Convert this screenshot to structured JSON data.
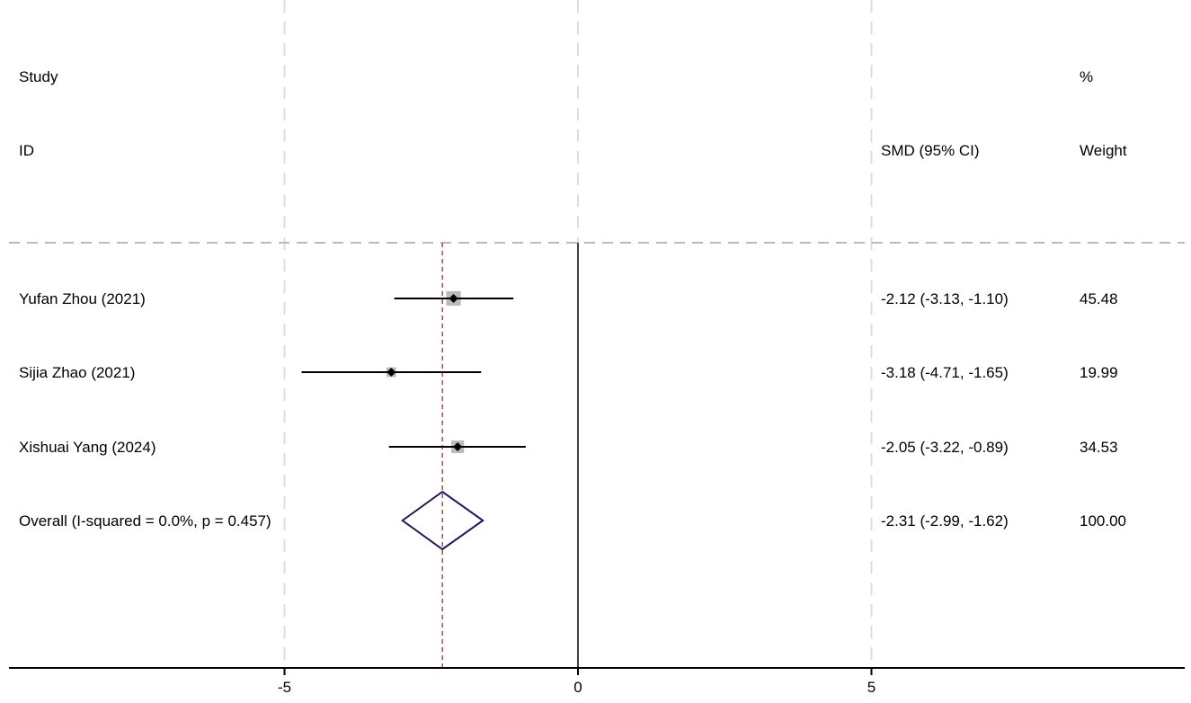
{
  "chart_data": {
    "type": "forest",
    "headers": {
      "study_line1": "Study",
      "study_line2": "ID",
      "effect": "SMD (95% CI)",
      "weight_line1": "%",
      "weight_line2": "Weight"
    },
    "studies": [
      {
        "label": "Yufan Zhou  (2021)",
        "es": -2.12,
        "lo": -3.13,
        "hi": -1.1,
        "weight": 45.48,
        "ci_text": "-2.12 (-3.13, -1.10)",
        "weight_text": "45.48"
      },
      {
        "label": "Sijia Zhao (2021)",
        "es": -3.18,
        "lo": -4.71,
        "hi": -1.65,
        "weight": 19.99,
        "ci_text": "-3.18 (-4.71, -1.65)",
        "weight_text": "19.99"
      },
      {
        "label": "Xishuai Yang (2024)",
        "es": -2.05,
        "lo": -3.22,
        "hi": -0.89,
        "weight": 34.53,
        "ci_text": "-2.05 (-3.22, -0.89)",
        "weight_text": "34.53"
      }
    ],
    "overall": {
      "label": "Overall  (I-squared = 0.0%, p = 0.457)",
      "es": -2.31,
      "lo": -2.99,
      "hi": -1.62,
      "ci_text": "-2.31 (-2.99, -1.62)",
      "weight_text": "100.00"
    },
    "x_ticks": [
      -5,
      0,
      5
    ],
    "x_tick_labels": [
      "-5",
      "0",
      "5"
    ],
    "null_line": 0,
    "xlim": [
      -9.7,
      10.3
    ],
    "colors": {
      "ci_line": "#000000",
      "weight_box": "#bbbbbb",
      "point": "#000000",
      "diamond": "#1a1a5e",
      "overall_line": "#a03030",
      "grid": "#dddddd"
    }
  }
}
